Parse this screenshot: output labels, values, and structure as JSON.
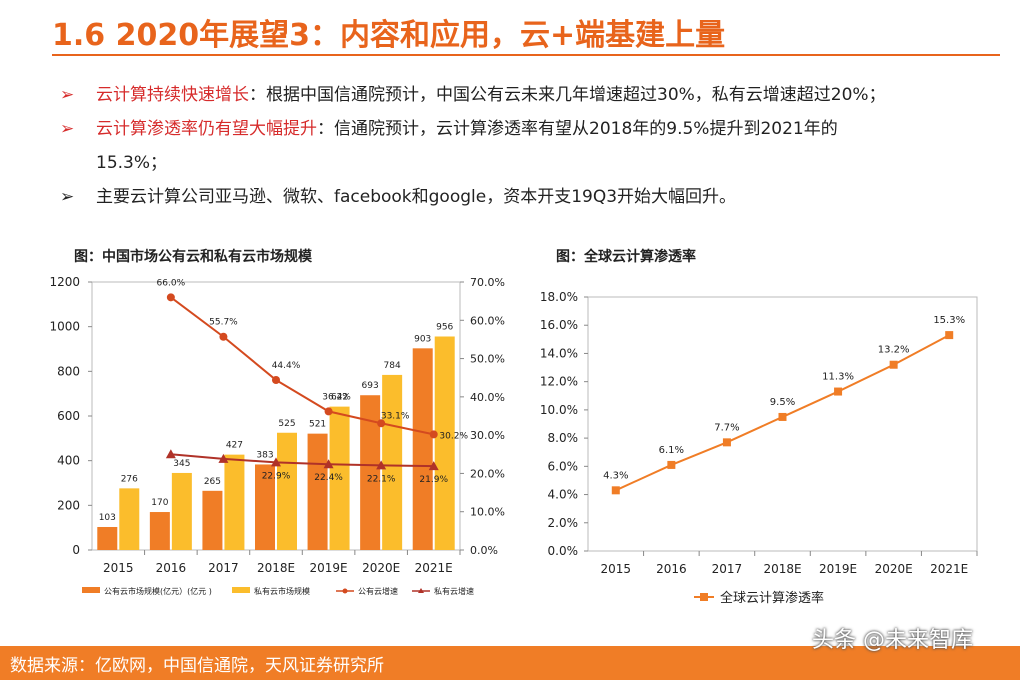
{
  "slide": {
    "title": "1.6 2020年展望3：内容和应用，云+端基建上量",
    "bullets": [
      {
        "mark": "➢",
        "highlight": "云计算持续快速增长",
        "text": "：根据中国信通院预计，中国公有云未来几年增速超过30%，私有云增速超过20%；",
        "cont": ""
      },
      {
        "mark": "➢",
        "highlight": "云计算渗透率仍有望大幅提升",
        "text": "：信通院预计，云计算渗透率有望从2018年的9.5%提升到2021年的",
        "cont": "15.3%；"
      },
      {
        "mark": "➢",
        "highlight": "",
        "text": "主要云计算公司亚马逊、微软、facebook和google，资本开支19Q3开始大幅回升。",
        "cont": ""
      }
    ],
    "footer": {
      "source": "数据来源：亿欧网，中国信通院，天风证券研究所",
      "watermark": "头条 @未来智库"
    }
  },
  "colors": {
    "accent": "#e8641c",
    "highlight": "#d62b2b",
    "bar_public": "#f07d26",
    "bar_private": "#fbbd2c",
    "line_public": "#d44a1f",
    "line_private": "#b03228",
    "band": "#f07d26"
  },
  "chart_data": [
    {
      "type": "bar",
      "title": "图：中国市场公有云和私有云市场规模",
      "categories": [
        "2015",
        "2016",
        "2017",
        "2018E",
        "2019E",
        "2020E",
        "2021E"
      ],
      "series": [
        {
          "name": "公有云市场规模(亿元）(亿元 )",
          "kind": "bar",
          "axis": "left",
          "values": [
            103,
            170,
            265,
            383,
            521,
            693,
            903
          ],
          "labels": [
            "103",
            "170",
            "265",
            "383",
            "521",
            "693",
            "903"
          ]
        },
        {
          "name": "私有云市场规模",
          "kind": "bar",
          "axis": "left",
          "values": [
            276,
            345,
            427,
            525,
            642,
            784,
            956
          ],
          "labels": [
            "276",
            "345",
            "427",
            "525",
            "642",
            "784",
            "956"
          ]
        },
        {
          "name": "公有云增速",
          "kind": "line",
          "marker": "circle",
          "axis": "right",
          "values": [
            null,
            66.0,
            55.7,
            44.4,
            36.2,
            33.1,
            30.2
          ],
          "labels": [
            "",
            "66.0%",
            "55.7%",
            "44.4%",
            "36.2%",
            "33.1%",
            "30.2%"
          ]
        },
        {
          "name": "私有云增速",
          "kind": "line",
          "marker": "triangle",
          "axis": "right",
          "values": [
            null,
            25.0,
            23.8,
            22.9,
            22.4,
            22.1,
            21.9
          ],
          "labels": [
            "",
            "",
            "",
            "22.9%",
            "22.4%",
            "22.1%",
            "21.9%"
          ]
        }
      ],
      "y_left": {
        "min": 0,
        "max": 1200,
        "ticks": [
          "0",
          "200",
          "400",
          "600",
          "800",
          "1000",
          "1200"
        ]
      },
      "y_right": {
        "min": 0,
        "max": 70,
        "ticks": [
          "0.0%",
          "10.0%",
          "20.0%",
          "30.0%",
          "40.0%",
          "50.0%",
          "60.0%",
          "70.0%"
        ]
      },
      "grid": false,
      "legend": "bottom"
    },
    {
      "type": "line",
      "title": "图：全球云计算渗透率",
      "categories": [
        "2015",
        "2016",
        "2017",
        "2018E",
        "2019E",
        "2020E",
        "2021E"
      ],
      "series": [
        {
          "name": "全球云计算渗透率",
          "marker": "square",
          "values": [
            4.3,
            6.1,
            7.7,
            9.5,
            11.3,
            13.2,
            15.3
          ],
          "labels": [
            "4.3%",
            "6.1%",
            "7.7%",
            "9.5%",
            "11.3%",
            "13.2%",
            "15.3%"
          ]
        }
      ],
      "y": {
        "min": 0,
        "max": 18,
        "ticks": [
          "0.0%",
          "2.0%",
          "4.0%",
          "6.0%",
          "8.0%",
          "10.0%",
          "12.0%",
          "14.0%",
          "16.0%",
          "18.0%"
        ]
      },
      "grid": false,
      "legend": "bottom"
    }
  ]
}
